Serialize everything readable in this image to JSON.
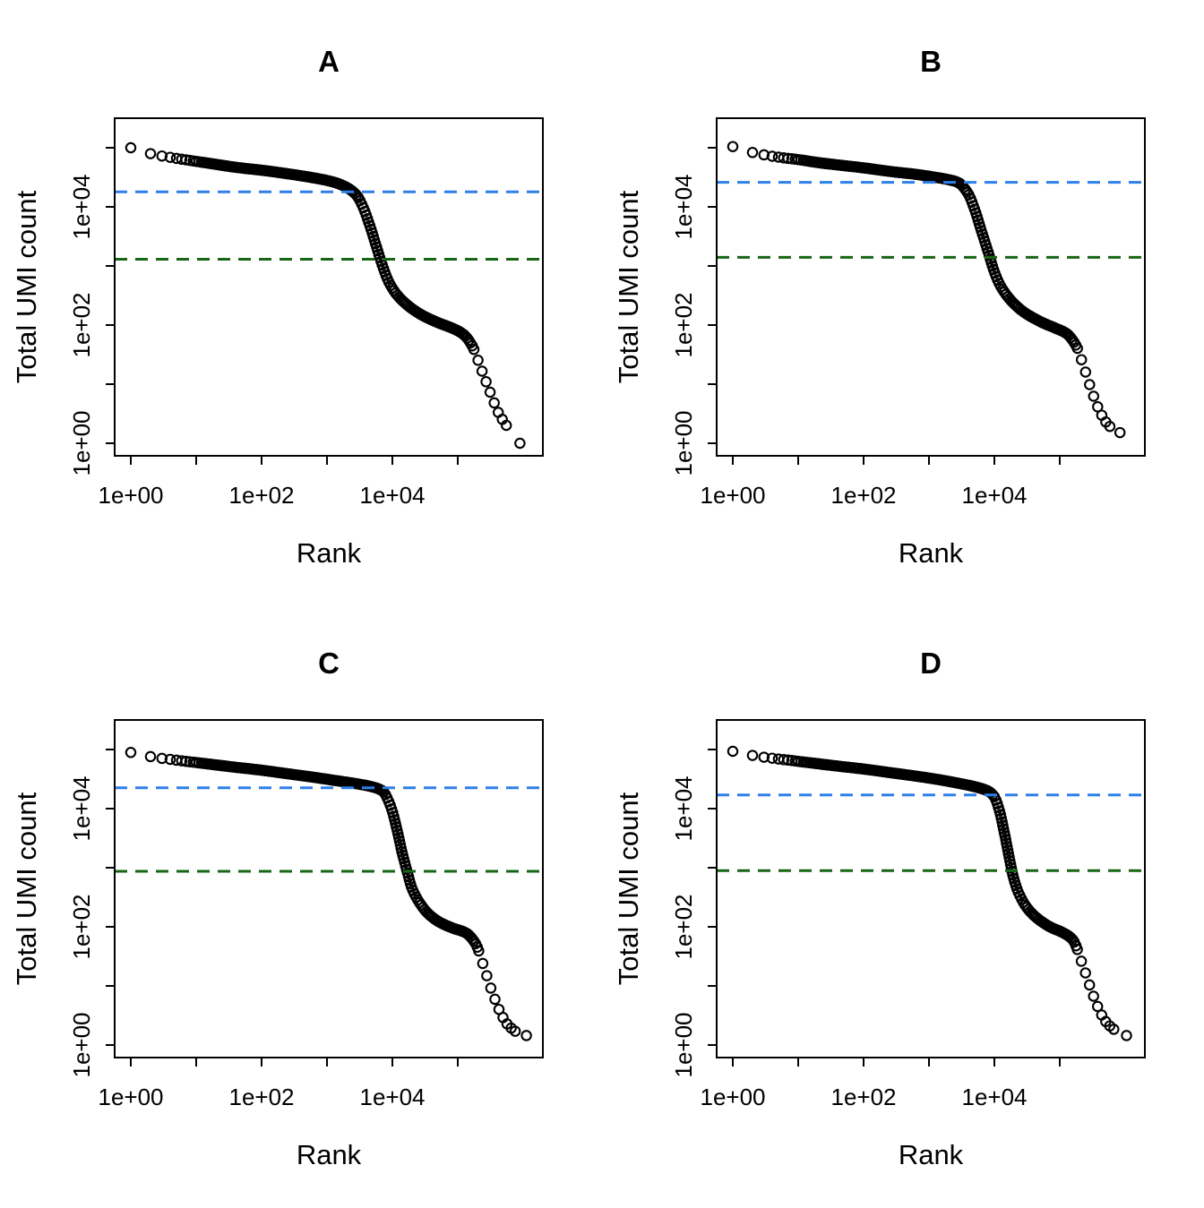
{
  "figure": {
    "description": "Four-panel barcode rank plot figure (knee plots) of Total UMI count versus barcode Rank on log-log axes",
    "panel_labels": [
      "A",
      "B",
      "C",
      "D"
    ],
    "marker": "open-circle",
    "marker_color": "#000000",
    "knee_line_color": "#2E7FE8",
    "inflection_line_color": "#166616",
    "background_color": "#ffffff"
  },
  "chart_data": [
    {
      "type": "scatter",
      "panel": "A",
      "title": "A",
      "xlabel": "Rank",
      "ylabel": "Total UMI count",
      "xscale": "log",
      "yscale": "log",
      "xlim_log10": [
        0,
        6.3
      ],
      "ylim_log10": [
        0,
        5.5
      ],
      "x_tick_log10": [
        0,
        1,
        2,
        3,
        4,
        5
      ],
      "y_tick_log10": [
        0,
        1,
        2,
        3,
        4,
        5
      ],
      "x_tick_labels": [
        "1e+00",
        "1e+02",
        "1e+04"
      ],
      "y_tick_labels": [
        "1e+00",
        "1e+02",
        "1e+04"
      ],
      "grid": false,
      "knee_line": {
        "value": 18000,
        "color": "#2E7FE8",
        "style": "dashed"
      },
      "inflection_line": {
        "value": 1300,
        "color": "#166616",
        "style": "dashed"
      },
      "points_log10": [
        [
          0,
          5.0
        ],
        [
          0.3,
          4.9
        ],
        [
          0.48,
          4.86
        ],
        [
          0.7,
          4.82
        ],
        [
          1.0,
          4.77
        ],
        [
          1.3,
          4.72
        ],
        [
          1.6,
          4.67
        ],
        [
          2.0,
          4.62
        ],
        [
          2.4,
          4.56
        ],
        [
          2.8,
          4.49
        ],
        [
          3.1,
          4.42
        ],
        [
          3.3,
          4.33
        ],
        [
          3.45,
          4.2
        ],
        [
          3.55,
          4.0
        ],
        [
          3.65,
          3.7
        ],
        [
          3.75,
          3.35
        ],
        [
          3.85,
          3.0
        ],
        [
          3.95,
          2.72
        ],
        [
          4.08,
          2.5
        ],
        [
          4.25,
          2.32
        ],
        [
          4.45,
          2.17
        ],
        [
          4.7,
          2.04
        ],
        [
          4.95,
          1.93
        ],
        [
          5.1,
          1.83
        ],
        [
          5.22,
          1.65
        ],
        [
          5.35,
          1.28
        ],
        [
          5.5,
          0.85
        ],
        [
          5.62,
          0.52
        ],
        [
          5.72,
          0.34
        ],
        [
          5.8,
          0.22
        ],
        [
          5.95,
          0.0
        ]
      ]
    },
    {
      "type": "scatter",
      "panel": "B",
      "title": "B",
      "xlabel": "Rank",
      "ylabel": "Total UMI count",
      "xscale": "log",
      "yscale": "log",
      "xlim_log10": [
        0,
        6.3
      ],
      "ylim_log10": [
        0,
        5.5
      ],
      "x_tick_log10": [
        0,
        1,
        2,
        3,
        4,
        5
      ],
      "y_tick_log10": [
        0,
        1,
        2,
        3,
        4,
        5
      ],
      "x_tick_labels": [
        "1e+00",
        "1e+02",
        "1e+04"
      ],
      "y_tick_labels": [
        "1e+00",
        "1e+02",
        "1e+04"
      ],
      "grid": false,
      "knee_line": {
        "value": 26000,
        "color": "#2E7FE8",
        "style": "dashed"
      },
      "inflection_line": {
        "value": 1400,
        "color": "#166616",
        "style": "dashed"
      },
      "points_log10": [
        [
          0,
          5.02
        ],
        [
          0.3,
          4.92
        ],
        [
          0.48,
          4.88
        ],
        [
          0.7,
          4.84
        ],
        [
          1.0,
          4.8
        ],
        [
          1.3,
          4.75
        ],
        [
          1.6,
          4.71
        ],
        [
          2.0,
          4.66
        ],
        [
          2.4,
          4.6
        ],
        [
          2.8,
          4.55
        ],
        [
          3.1,
          4.5
        ],
        [
          3.3,
          4.46
        ],
        [
          3.45,
          4.41
        ],
        [
          3.6,
          4.22
        ],
        [
          3.7,
          3.95
        ],
        [
          3.8,
          3.6
        ],
        [
          3.9,
          3.25
        ],
        [
          4.0,
          2.9
        ],
        [
          4.1,
          2.65
        ],
        [
          4.25,
          2.42
        ],
        [
          4.45,
          2.22
        ],
        [
          4.7,
          2.06
        ],
        [
          4.95,
          1.94
        ],
        [
          5.1,
          1.86
        ],
        [
          5.25,
          1.65
        ],
        [
          5.38,
          1.25
        ],
        [
          5.5,
          0.85
        ],
        [
          5.62,
          0.52
        ],
        [
          5.75,
          0.3
        ],
        [
          5.92,
          0.18
        ]
      ]
    },
    {
      "type": "scatter",
      "panel": "C",
      "title": "C",
      "xlabel": "Rank",
      "ylabel": "Total UMI count",
      "xscale": "log",
      "yscale": "log",
      "xlim_log10": [
        0,
        6.3
      ],
      "ylim_log10": [
        0,
        5.5
      ],
      "x_tick_log10": [
        0,
        1,
        2,
        3,
        4,
        5
      ],
      "y_tick_log10": [
        0,
        1,
        2,
        3,
        4,
        5
      ],
      "x_tick_labels": [
        "1e+00",
        "1e+02",
        "1e+04"
      ],
      "y_tick_labels": [
        "1e+00",
        "1e+02",
        "1e+04"
      ],
      "grid": false,
      "knee_line": {
        "value": 22500,
        "color": "#2E7FE8",
        "style": "dashed"
      },
      "inflection_line": {
        "value": 870,
        "color": "#166616",
        "style": "dashed"
      },
      "points_log10": [
        [
          0,
          4.95
        ],
        [
          0.3,
          4.88
        ],
        [
          0.48,
          4.85
        ],
        [
          0.7,
          4.82
        ],
        [
          1.0,
          4.78
        ],
        [
          1.3,
          4.74
        ],
        [
          1.6,
          4.7
        ],
        [
          2.0,
          4.65
        ],
        [
          2.4,
          4.59
        ],
        [
          2.8,
          4.53
        ],
        [
          3.1,
          4.48
        ],
        [
          3.4,
          4.43
        ],
        [
          3.65,
          4.38
        ],
        [
          3.85,
          4.3
        ],
        [
          3.97,
          4.05
        ],
        [
          4.07,
          3.65
        ],
        [
          4.15,
          3.25
        ],
        [
          4.23,
          2.92
        ],
        [
          4.3,
          2.65
        ],
        [
          4.42,
          2.4
        ],
        [
          4.55,
          2.22
        ],
        [
          4.72,
          2.08
        ],
        [
          4.92,
          1.98
        ],
        [
          5.12,
          1.9
        ],
        [
          5.27,
          1.72
        ],
        [
          5.4,
          1.32
        ],
        [
          5.52,
          0.92
        ],
        [
          5.64,
          0.58
        ],
        [
          5.76,
          0.35
        ],
        [
          5.9,
          0.22
        ],
        [
          6.05,
          0.16
        ]
      ]
    },
    {
      "type": "scatter",
      "panel": "D",
      "title": "D",
      "xlabel": "Rank",
      "ylabel": "Total UMI count",
      "xscale": "log",
      "yscale": "log",
      "xlim_log10": [
        0,
        6.3
      ],
      "ylim_log10": [
        0,
        5.5
      ],
      "x_tick_log10": [
        0,
        1,
        2,
        3,
        4,
        5
      ],
      "y_tick_log10": [
        0,
        1,
        2,
        3,
        4,
        5
      ],
      "x_tick_labels": [
        "1e+00",
        "1e+02",
        "1e+04"
      ],
      "y_tick_labels": [
        "1e+00",
        "1e+02",
        "1e+04"
      ],
      "grid": false,
      "knee_line": {
        "value": 17000,
        "color": "#2E7FE8",
        "style": "dashed"
      },
      "inflection_line": {
        "value": 890,
        "color": "#166616",
        "style": "dashed"
      },
      "points_log10": [
        [
          0,
          4.97
        ],
        [
          0.3,
          4.9
        ],
        [
          0.48,
          4.87
        ],
        [
          0.7,
          4.84
        ],
        [
          1.0,
          4.8
        ],
        [
          1.3,
          4.76
        ],
        [
          1.6,
          4.72
        ],
        [
          2.0,
          4.67
        ],
        [
          2.4,
          4.61
        ],
        [
          2.8,
          4.55
        ],
        [
          3.1,
          4.5
        ],
        [
          3.4,
          4.44
        ],
        [
          3.7,
          4.37
        ],
        [
          3.9,
          4.3
        ],
        [
          4.0,
          4.2
        ],
        [
          4.08,
          3.95
        ],
        [
          4.16,
          3.55
        ],
        [
          4.24,
          3.1
        ],
        [
          4.3,
          2.8
        ],
        [
          4.38,
          2.55
        ],
        [
          4.5,
          2.32
        ],
        [
          4.65,
          2.15
        ],
        [
          4.85,
          2.0
        ],
        [
          5.05,
          1.9
        ],
        [
          5.2,
          1.78
        ],
        [
          5.33,
          1.42
        ],
        [
          5.46,
          1.0
        ],
        [
          5.58,
          0.65
        ],
        [
          5.7,
          0.4
        ],
        [
          5.85,
          0.25
        ],
        [
          6.02,
          0.16
        ]
      ]
    }
  ]
}
